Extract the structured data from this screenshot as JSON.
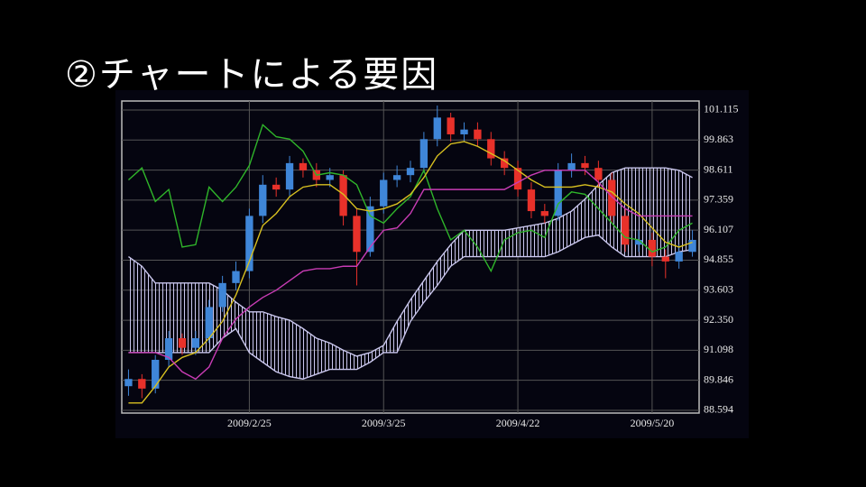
{
  "slide_title": "②チャートによる要因",
  "chart_data": {
    "type": "candlestick",
    "categories": [
      null,
      null,
      null,
      null,
      null,
      null,
      null,
      null,
      null,
      "2009/2/25",
      null,
      null,
      null,
      null,
      null,
      null,
      null,
      null,
      null,
      "2009/3/25",
      null,
      null,
      null,
      null,
      null,
      null,
      null,
      null,
      null,
      "2009/4/22",
      null,
      null,
      null,
      null,
      null,
      null,
      null,
      null,
      null,
      "2009/5/20",
      null,
      null,
      null
    ],
    "open": [
      89.6,
      89.9,
      89.5,
      90.7,
      91.6,
      91.2,
      91.6,
      92.9,
      93.9,
      94.4,
      96.7,
      98.0,
      97.8,
      98.9,
      98.6,
      98.2,
      98.4,
      96.7,
      95.2,
      97.1,
      98.2,
      98.4,
      98.7,
      99.9,
      100.8,
      100.1,
      100.3,
      99.9,
      99.1,
      98.7,
      97.8,
      96.9,
      96.7,
      98.6,
      98.9,
      98.7,
      98.2,
      96.7,
      95.5,
      95.7,
      95.0,
      94.8,
      95.2
    ],
    "high": [
      90.3,
      90.1,
      90.9,
      91.9,
      91.8,
      91.9,
      93.2,
      94.2,
      94.8,
      97.0,
      98.4,
      98.3,
      99.2,
      99.1,
      98.9,
      98.7,
      98.6,
      97.0,
      97.5,
      98.5,
      98.8,
      99.0,
      100.2,
      101.3,
      101.0,
      100.6,
      100.6,
      100.2,
      99.4,
      99.0,
      98.1,
      97.2,
      98.9,
      99.3,
      99.2,
      99.0,
      98.5,
      97.0,
      96.1,
      96.0,
      95.3,
      95.5,
      96.1
    ],
    "low": [
      89.2,
      89.1,
      89.3,
      90.4,
      90.9,
      90.9,
      91.4,
      92.7,
      93.6,
      94.1,
      96.4,
      97.5,
      97.5,
      98.3,
      97.9,
      97.9,
      96.3,
      93.8,
      95.0,
      96.8,
      97.9,
      98.1,
      98.5,
      99.6,
      99.8,
      99.8,
      99.6,
      98.8,
      98.4,
      97.5,
      96.6,
      96.4,
      96.5,
      98.3,
      98.4,
      97.9,
      96.4,
      95.2,
      95.2,
      94.6,
      94.1,
      94.5,
      95.0
    ],
    "close": [
      89.9,
      89.5,
      90.7,
      91.6,
      91.2,
      91.6,
      92.9,
      93.9,
      94.4,
      96.7,
      98.0,
      97.8,
      98.9,
      98.6,
      98.2,
      98.4,
      96.7,
      95.2,
      97.1,
      98.2,
      98.4,
      98.7,
      99.9,
      100.8,
      100.1,
      100.3,
      99.9,
      99.1,
      98.7,
      97.8,
      96.9,
      96.7,
      98.6,
      98.9,
      98.7,
      98.2,
      96.7,
      95.5,
      95.7,
      95.0,
      94.8,
      95.2,
      95.7
    ],
    "up_color": "#3f86d8",
    "down_color": "#e8312a",
    "series": [
      {
        "color": "#2fb52a",
        "values": [
          98.2,
          98.7,
          97.3,
          97.8,
          95.4,
          95.5,
          97.9,
          97.3,
          97.9,
          98.8,
          100.5,
          100.0,
          99.9,
          99.4,
          98.4,
          98.5,
          98.4,
          98.0,
          96.7,
          96.4,
          97.0,
          97.5,
          98.6,
          97.0,
          95.7,
          96.1,
          95.4,
          94.4,
          95.7,
          96.0,
          96.1,
          95.8,
          97.2,
          97.7,
          97.6,
          97.0,
          96.4,
          95.8,
          95.7,
          95.2,
          95.4,
          96.1,
          96.4
        ]
      },
      {
        "color": "#d8c020",
        "values": [
          88.9,
          88.9,
          89.6,
          90.4,
          90.8,
          91.0,
          91.6,
          92.3,
          93.4,
          94.8,
          96.3,
          96.8,
          97.5,
          97.9,
          98.0,
          98.0,
          97.6,
          97.0,
          96.9,
          97.0,
          97.2,
          97.6,
          98.3,
          99.2,
          99.7,
          99.8,
          99.6,
          99.3,
          99.0,
          98.6,
          98.2,
          97.9,
          97.9,
          97.9,
          98.0,
          97.9,
          97.7,
          97.2,
          96.8,
          96.2,
          95.6,
          95.4,
          95.6
        ]
      },
      {
        "color": "#c83cb4",
        "values": [
          91.0,
          91.0,
          91.0,
          90.8,
          90.2,
          89.9,
          90.4,
          91.6,
          92.4,
          92.9,
          93.3,
          93.6,
          94.0,
          94.4,
          94.5,
          94.5,
          94.6,
          94.6,
          95.4,
          96.1,
          96.2,
          96.8,
          97.8,
          97.8,
          97.8,
          97.8,
          97.8,
          97.8,
          97.8,
          98.1,
          98.4,
          98.6,
          98.6,
          98.6,
          98.6,
          98.1,
          97.5,
          97.0,
          96.7,
          96.7,
          96.7,
          96.7,
          96.7
        ]
      }
    ],
    "cloud": {
      "color": "#c9c6ec",
      "span_a": [
        95.0,
        94.6,
        93.9,
        93.9,
        93.9,
        93.9,
        93.9,
        93.6,
        93.1,
        92.7,
        92.7,
        92.5,
        92.35,
        92.0,
        91.6,
        91.4,
        91.1,
        90.85,
        91.0,
        91.3,
        92.3,
        93.2,
        94.0,
        94.8,
        95.5,
        96.1,
        96.1,
        96.1,
        96.1,
        96.2,
        96.3,
        96.4,
        96.6,
        96.9,
        97.4,
        98.0,
        98.5,
        98.7,
        98.7,
        98.7,
        98.7,
        98.6,
        98.3
      ],
      "span_b": [
        91.0,
        91.0,
        91.0,
        91.0,
        91.0,
        91.0,
        91.0,
        91.6,
        92.0,
        91.0,
        90.6,
        90.2,
        90.0,
        89.9,
        90.1,
        90.3,
        90.3,
        90.3,
        90.6,
        91.0,
        91.0,
        92.3,
        93.1,
        93.8,
        94.6,
        95.0,
        95.0,
        95.0,
        95.0,
        95.0,
        95.0,
        95.0,
        95.2,
        95.5,
        95.8,
        95.9,
        95.4,
        95.0,
        95.0,
        95.0,
        95.0,
        95.2,
        95.3
      ]
    },
    "ylim": [
      88.48,
      101.49
    ],
    "yticks": [
      101.115,
      99.863,
      98.611,
      97.359,
      96.107,
      94.855,
      93.603,
      {
        "value": 92.35,
        "label": "92.350"
      },
      91.098,
      89.846,
      88.594
    ],
    "grid": true
  }
}
